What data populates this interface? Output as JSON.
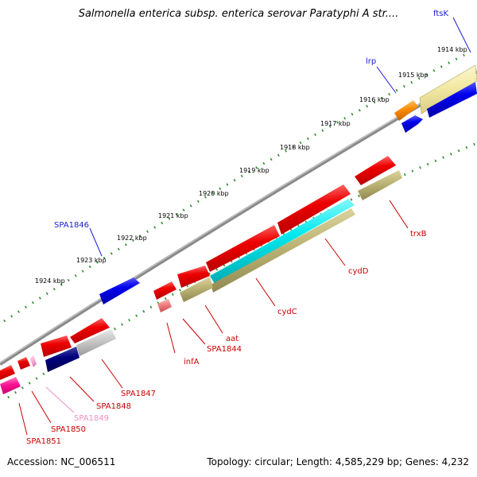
{
  "title": "Salmonella enterica subsp. enterica serovar Paratyphi A str....",
  "footer": {
    "accession": "Accession: NC_006511",
    "summary": "Topology: circular; Length: 4,585,229 bp; Genes: 4,232"
  },
  "scale_labels": [
    "1914 kbp",
    "1915 kbp",
    "1916 kbp",
    "1917 kbp",
    "1918 kbp",
    "1919 kbp",
    "1920 kbp",
    "1921 kbp",
    "1922 kbp",
    "1923 kbp",
    "1924 kbp"
  ],
  "gene_labels": [
    {
      "text": "ftsK",
      "color": "#1a1ad6"
    },
    {
      "text": "lrp",
      "color": "#1a1ad6"
    },
    {
      "text": "SPA1846",
      "color": "#1a1ad6"
    },
    {
      "text": "trxB",
      "color": "#cc0000"
    },
    {
      "text": "cydD",
      "color": "#cc0000"
    },
    {
      "text": "cydC",
      "color": "#cc0000"
    },
    {
      "text": "aat",
      "color": "#cc0000"
    },
    {
      "text": "SPA1844",
      "color": "#cc0000"
    },
    {
      "text": "infA",
      "color": "#cc0000"
    },
    {
      "text": "SPA1847",
      "color": "#cc0000"
    },
    {
      "text": "SPA1848",
      "color": "#cc0000"
    },
    {
      "text": "SPA1849",
      "color": "#f090c0"
    },
    {
      "text": "SPA1850",
      "color": "#cc0000"
    },
    {
      "text": "SPA1851",
      "color": "#cc0000"
    }
  ],
  "colors": {
    "backbone": "#888888",
    "tick": "#2e8b2e",
    "cds": "#ee0000",
    "olive": "#c4bc7c"
  }
}
